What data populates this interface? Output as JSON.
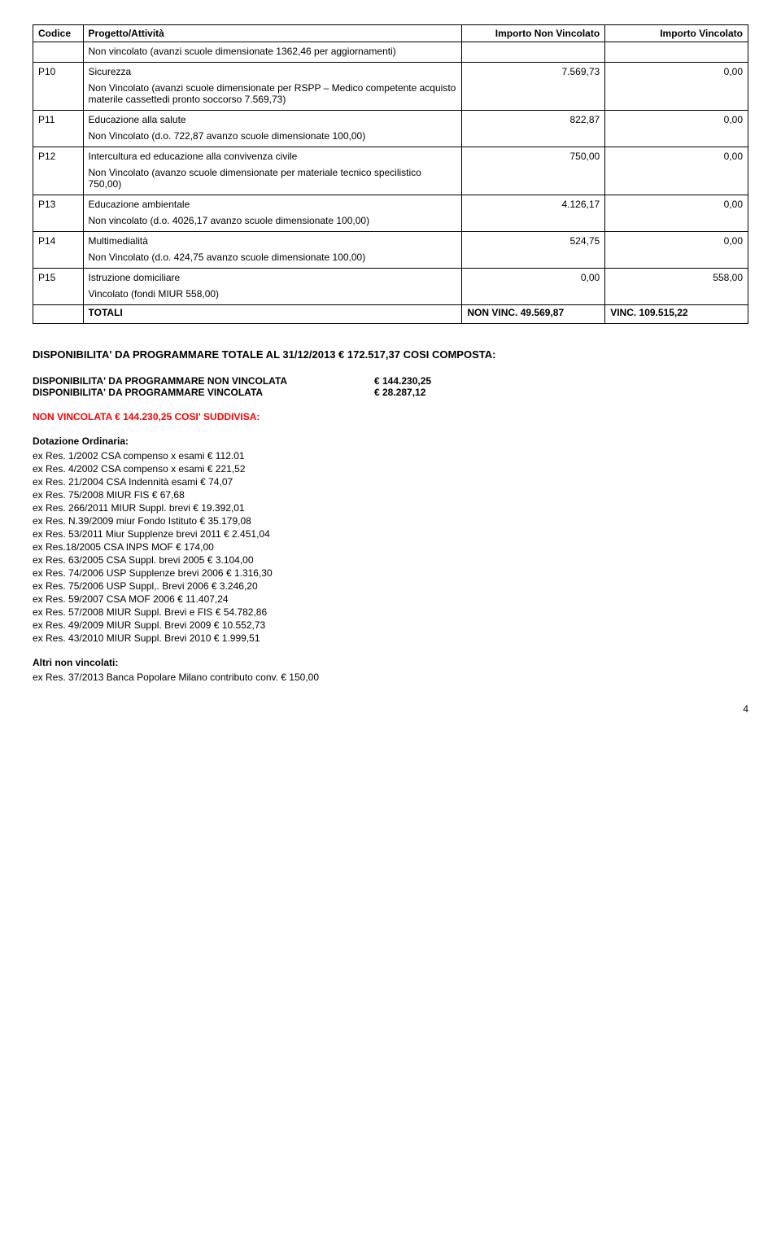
{
  "table": {
    "headers": [
      "Codice",
      "Progetto/Attività",
      "Importo Non Vincolato",
      "Importo Vincolato"
    ],
    "rows": [
      {
        "code": "",
        "desc": "Non vincolato (avanzi scuole dimensionate 1362,46 per aggiornamenti)",
        "nv": "",
        "v": ""
      },
      {
        "code": "P10",
        "desc": "Sicurezza",
        "nv": "7.569,73",
        "v": "0,00"
      },
      {
        "code": "",
        "desc": "Non Vincolato (avanzi scuole dimensionate per RSPP – Medico competente acquisto materile cassettedi pronto soccorso 7.569,73)",
        "nv": "",
        "v": ""
      },
      {
        "code": "P11",
        "desc": "Educazione alla salute",
        "nv": "822,87",
        "v": "0,00"
      },
      {
        "code": "",
        "desc": "Non Vincolato (d.o. 722,87 avanzo scuole dimensionate 100,00)",
        "nv": "",
        "v": ""
      },
      {
        "code": "P12",
        "desc": "Intercultura ed educazione alla convivenza civile",
        "nv": "750,00",
        "v": "0,00"
      },
      {
        "code": "",
        "desc": "Non Vincolato (avanzo scuole dimensionate per materiale tecnico specilistico 750,00)",
        "nv": "",
        "v": ""
      },
      {
        "code": "P13",
        "desc": "Educazione ambientale",
        "nv": "4.126,17",
        "v": "0,00"
      },
      {
        "code": "",
        "desc": "Non vincolato (d.o. 4026,17 avanzo scuole dimensionate 100,00)",
        "nv": "",
        "v": ""
      },
      {
        "code": "P14",
        "desc": "Multimedialità",
        "nv": "524,75",
        "v": "0,00"
      },
      {
        "code": "",
        "desc": "Non Vincolato (d.o. 424,75 avanzo scuole dimensionate 100,00)",
        "nv": "",
        "v": ""
      },
      {
        "code": "P15",
        "desc": "Istruzione domiciliare",
        "nv": "0,00",
        "v": "558,00"
      },
      {
        "code": "",
        "desc": "Vincolato (fondi MIUR 558,00)",
        "nv": "",
        "v": ""
      }
    ],
    "totali": {
      "label": "TOTALI",
      "nv_label": "NON VINC.",
      "nv": "49.569,87",
      "v_label": "VINC.",
      "v": "109.515,22"
    }
  },
  "sec1": "DISPONIBILITA' DA PROGRAMMARE TOTALE AL 31/12/2013 € 172.517,37 COSI COMPOSTA:",
  "disp_nv": {
    "label": "DISPONIBILITA' DA PROGRAMMARE  NON VINCOLATA",
    "value": "€  144.230,25"
  },
  "disp_v": {
    "label": "DISPONIBILITA' DA PROGRAMMARE VINCOLATA",
    "value": "€    28.287,12"
  },
  "red": "NON VINCOLATA € 144.230,25 COSI' SUDDIVISA:",
  "dot_ord": "Dotazione Ordinaria:",
  "dot_list": [
    "ex Res. 1/2002 CSA compenso x esami € 112.01",
    "ex Res. 4/2002 CSA compenso x esami € 221,52",
    "ex Res. 21/2004 CSA Indennità esami € 74,07",
    "ex Res. 75/2008 MIUR FIS € 67,68",
    "ex Res. 266/2011 MIUR Suppl. brevi € 19.392,01",
    "ex Res. N.39/2009 miur Fondo Istituto € 35.179,08",
    "ex Res. 53/2011 Miur Supplenze brevi 2011 € 2.451,04",
    "ex Res.18/2005 CSA INPS MOF € 174,00",
    "ex Res. 63/2005 CSA Suppl. brevi 2005 € 3.104,00",
    "ex Res. 74/2006 USP Supplenze brevi 2006 € 1.316,30",
    "ex Res. 75/2006 USP Suppl,. Brevi 2006 € 3.246,20",
    "ex Res. 59/2007 CSA MOF 2006 € 11.407,24",
    "ex Res. 57/2008 MIUR Suppl. Brevi e FIS € 54.782,86",
    "ex Res. 49/2009 MIUR Suppl. Brevi 2009 € 10.552,73",
    "ex Res. 43/2010 MIUR Suppl. Brevi 2010 € 1.999,51"
  ],
  "altri_label": "Altri non vincolati:",
  "altri_list": [
    "ex Res. 37/2013 Banca Popolare Milano contributo conv. € 150,00"
  ],
  "pageno": "4"
}
